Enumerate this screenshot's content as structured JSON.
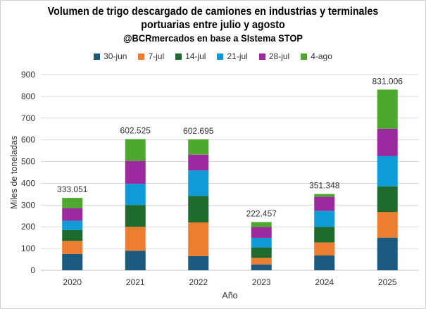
{
  "title_line1": "Volumen de trigo descargado de camiones en industrias y terminales",
  "title_line2": "portuarias entre julio y agosto",
  "title_line3": "@BCRmercados en base a SIstema STOP",
  "colors": {
    "30-jun": "#1b5a7e",
    "7-jul": "#ed7d31",
    "14-jul": "#1e6b2d",
    "21-jul": "#0f9bd7",
    "28-jul": "#9c2a9e",
    "4-ago": "#4ea72e"
  },
  "chart_data": {
    "type": "bar",
    "stacked": true,
    "categories": [
      "2020",
      "2021",
      "2022",
      "2023",
      "2024",
      "2025"
    ],
    "series": [
      {
        "name": "30-jun",
        "values": [
          75,
          90,
          65,
          27,
          68,
          150
        ]
      },
      {
        "name": "7-jul",
        "values": [
          60,
          110,
          155,
          30,
          60,
          118
        ]
      },
      {
        "name": "14-jul",
        "values": [
          50,
          100,
          122,
          48,
          72,
          118
        ]
      },
      {
        "name": "21-jul",
        "values": [
          43,
          98,
          117,
          44,
          73,
          140
        ]
      },
      {
        "name": "28-jul",
        "values": [
          57,
          105,
          73,
          50,
          65,
          125
        ]
      },
      {
        "name": "4-ago",
        "values": [
          48,
          100,
          70,
          23,
          13,
          180
        ]
      }
    ],
    "totals": [
      "333.051",
      "602.525",
      "602.695",
      "222.457",
      "351.348",
      "831.006"
    ],
    "xlabel": "Año",
    "ylabel": "Miles de toneladas",
    "ylim": [
      0,
      900
    ],
    "yticks": [
      "0",
      "100",
      "200",
      "300",
      "400",
      "500",
      "600",
      "700",
      "800",
      "900"
    ],
    "grid": true,
    "legend_position": "top"
  }
}
